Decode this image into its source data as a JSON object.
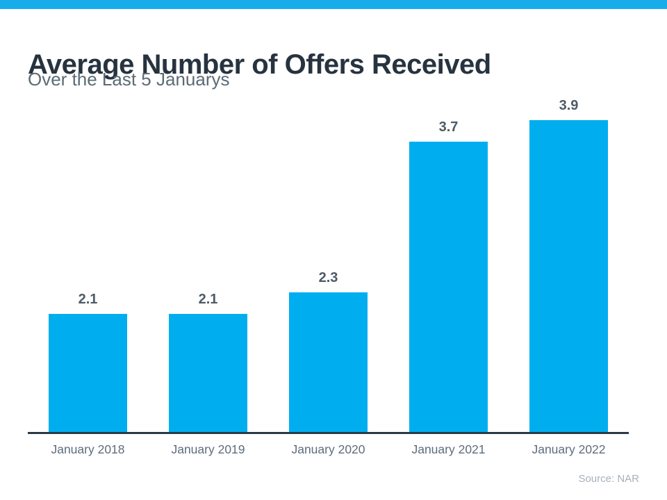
{
  "page": {
    "title": "Average Number of Offers Received",
    "subtitle": "Over the Last 5 Januarys",
    "source": "Source: NAR"
  },
  "colors": {
    "top_accent_bar": "#16ADEA",
    "bar_fill": "#00AEEF",
    "title_text": "#27333F",
    "subtitle_text": "#5C6B74",
    "value_label_text": "#4E5A66",
    "axis_line": "#2B3A46",
    "axis_label_text": "#5D6C7C",
    "source_text": "#A7B0BA"
  },
  "chart_data": {
    "type": "bar",
    "title": "Average Number of Offers Received",
    "subtitle": "Over the Last 5 Januarys",
    "categories": [
      "January 2018",
      "January 2019",
      "January 2020",
      "January 2021",
      "January 2022"
    ],
    "values": [
      2.1,
      2.1,
      2.3,
      3.7,
      3.9
    ],
    "data_labels": [
      "2.1",
      "2.1",
      "2.3",
      "3.7",
      "3.9"
    ],
    "xlabel": "",
    "ylabel": "",
    "ylim": [
      1.0,
      4.0
    ],
    "grid": false,
    "legend": false,
    "bar_color": "#00AEEF",
    "source": "Source: NAR"
  }
}
